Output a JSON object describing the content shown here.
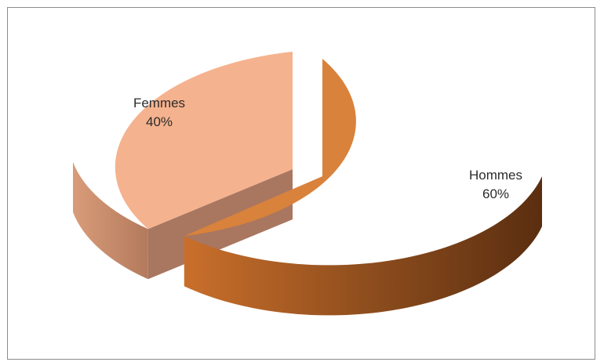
{
  "chart_data": {
    "type": "pie",
    "style": "3d-exploded",
    "slices": [
      {
        "label": "Hommes",
        "value": 60,
        "value_label": "60%",
        "color": "#D9823B",
        "side_color": "#8A4B1C"
      },
      {
        "label": "Femmes",
        "value": 40,
        "value_label": "40%",
        "color": "#F5B28E",
        "side_color": "#C78867"
      }
    ],
    "legend": "none"
  }
}
